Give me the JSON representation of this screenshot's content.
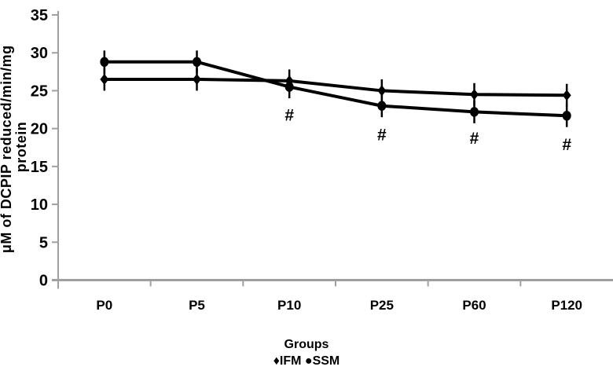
{
  "figure": {
    "background_color": "#ffffff",
    "axis_color": "#a0a0a0",
    "series_color": "#000000",
    "text_color": "#000000"
  },
  "chart_data": {
    "type": "line",
    "title": "",
    "categories": [
      "P0",
      "P5",
      "P10",
      "P25",
      "P60",
      "P120"
    ],
    "series": [
      {
        "name": "IFM",
        "marker": "diamond",
        "color": "#000000",
        "values": [
          26.5,
          26.5,
          26.3,
          25.0,
          24.5,
          24.4
        ],
        "error_bar": 1.5
      },
      {
        "name": "SSM",
        "marker": "circle",
        "color": "#000000",
        "values": [
          28.8,
          28.8,
          25.5,
          23.0,
          22.2,
          21.7
        ],
        "error_bar": 1.5
      }
    ],
    "annotations": [
      {
        "text": "#",
        "category": "P10",
        "value": 21.8
      },
      {
        "text": "#",
        "category": "P25",
        "value": 19.2
      },
      {
        "text": "#",
        "category": "P60",
        "value": 18.7
      },
      {
        "text": "#",
        "category": "P120",
        "value": 17.9
      }
    ],
    "xlabel": "Groups",
    "ylabel": "μM of DCPIP reduced/min/mg protein",
    "ylabel_lines": [
      "μM of DCPIP reduced/min/mg",
      "protein"
    ],
    "yticks": [
      0,
      5,
      10,
      15,
      20,
      25,
      30,
      35
    ],
    "ylim": [
      0,
      35
    ],
    "grid": false,
    "legend": {
      "position": "bottom-center",
      "entries": [
        {
          "marker": "diamond",
          "label": "IFM"
        },
        {
          "marker": "circle",
          "label": "SSM"
        }
      ]
    }
  }
}
